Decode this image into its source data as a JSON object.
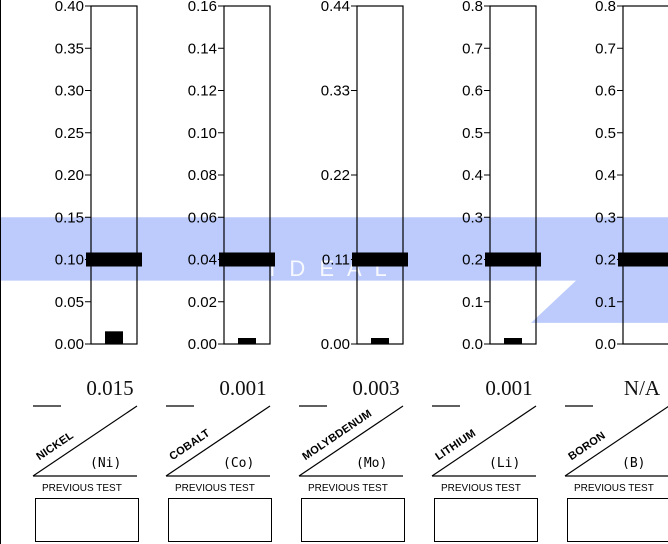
{
  "chart_data": {
    "type": "bar",
    "watermark": "I D E A L",
    "colors": {
      "ideal_band": "#b8c8fb",
      "marker": "#000000",
      "frame": "#000000"
    },
    "gauges": [
      {
        "element": "NICKEL",
        "symbol": "(Ni)",
        "value": 0.015,
        "value_label": "0.015",
        "ideal_marker": 0.1,
        "ideal_low": 0.075,
        "ideal_high": 0.15,
        "ylim": [
          0,
          0.4
        ],
        "ticks": [
          0.0,
          0.05,
          0.1,
          0.15,
          0.2,
          0.25,
          0.3,
          0.35,
          0.4
        ],
        "tick_labels": [
          "0.00",
          "0.05",
          "0.10",
          "0.15",
          "0.20",
          "0.25",
          "0.30",
          "0.35",
          "0.40"
        ],
        "previous_test_label": "PREVIOUS TEST"
      },
      {
        "element": "COBALT",
        "symbol": "(Co)",
        "value": 0.001,
        "value_label": "0.001",
        "ideal_marker": 0.04,
        "ideal_low": 0.03,
        "ideal_high": 0.06,
        "ylim": [
          0,
          0.16
        ],
        "ticks": [
          0.0,
          0.02,
          0.04,
          0.06,
          0.08,
          0.1,
          0.12,
          0.14,
          0.16
        ],
        "tick_labels": [
          "0.00",
          "0.02",
          "0.04",
          "0.06",
          "0.08",
          "0.10",
          "0.12",
          "0.14",
          "0.16"
        ],
        "previous_test_label": "PREVIOUS TEST"
      },
      {
        "element": "MOLYBDENUM",
        "symbol": "(Mo)",
        "value": 0.003,
        "value_label": "0.003",
        "ideal_marker": 0.11,
        "ideal_low": 0.0825,
        "ideal_high": 0.165,
        "ylim": [
          0,
          0.44
        ],
        "ticks": [
          0.0,
          0.11,
          0.22,
          0.33,
          0.44
        ],
        "tick_labels": [
          "0.00",
          "0.11",
          "0.22",
          "0.33",
          "0.44"
        ],
        "previous_test_label": "PREVIOUS TEST"
      },
      {
        "element": "LITHIUM",
        "symbol": "(Li)",
        "value": 0.001,
        "value_label": "0.001",
        "ideal_marker": 0.2,
        "ideal_low": 0.15,
        "ideal_high": 0.3,
        "ylim": [
          0,
          0.8
        ],
        "ticks": [
          0.0,
          0.1,
          0.2,
          0.3,
          0.4,
          0.5,
          0.6,
          0.7,
          0.8
        ],
        "tick_labels": [
          "0.0",
          "0.1",
          "0.2",
          "0.3",
          "0.4",
          "0.5",
          "0.6",
          "0.7",
          "0.8"
        ],
        "previous_test_label": "PREVIOUS TEST"
      },
      {
        "element": "BORON",
        "symbol": "(B)",
        "value": null,
        "value_label": "N/A",
        "ideal_marker": 0.2,
        "ideal_low": 0.05,
        "ideal_high": 0.3,
        "ylim": [
          0,
          0.8
        ],
        "ticks": [
          0.0,
          0.1,
          0.2,
          0.3,
          0.4,
          0.5,
          0.6,
          0.7,
          0.8
        ],
        "tick_labels": [
          "0.0",
          "0.1",
          "0.2",
          "0.3",
          "0.4",
          "0.5",
          "0.6",
          "0.7",
          "0.8"
        ],
        "previous_test_label": "PREVIOUS TEST"
      }
    ]
  }
}
